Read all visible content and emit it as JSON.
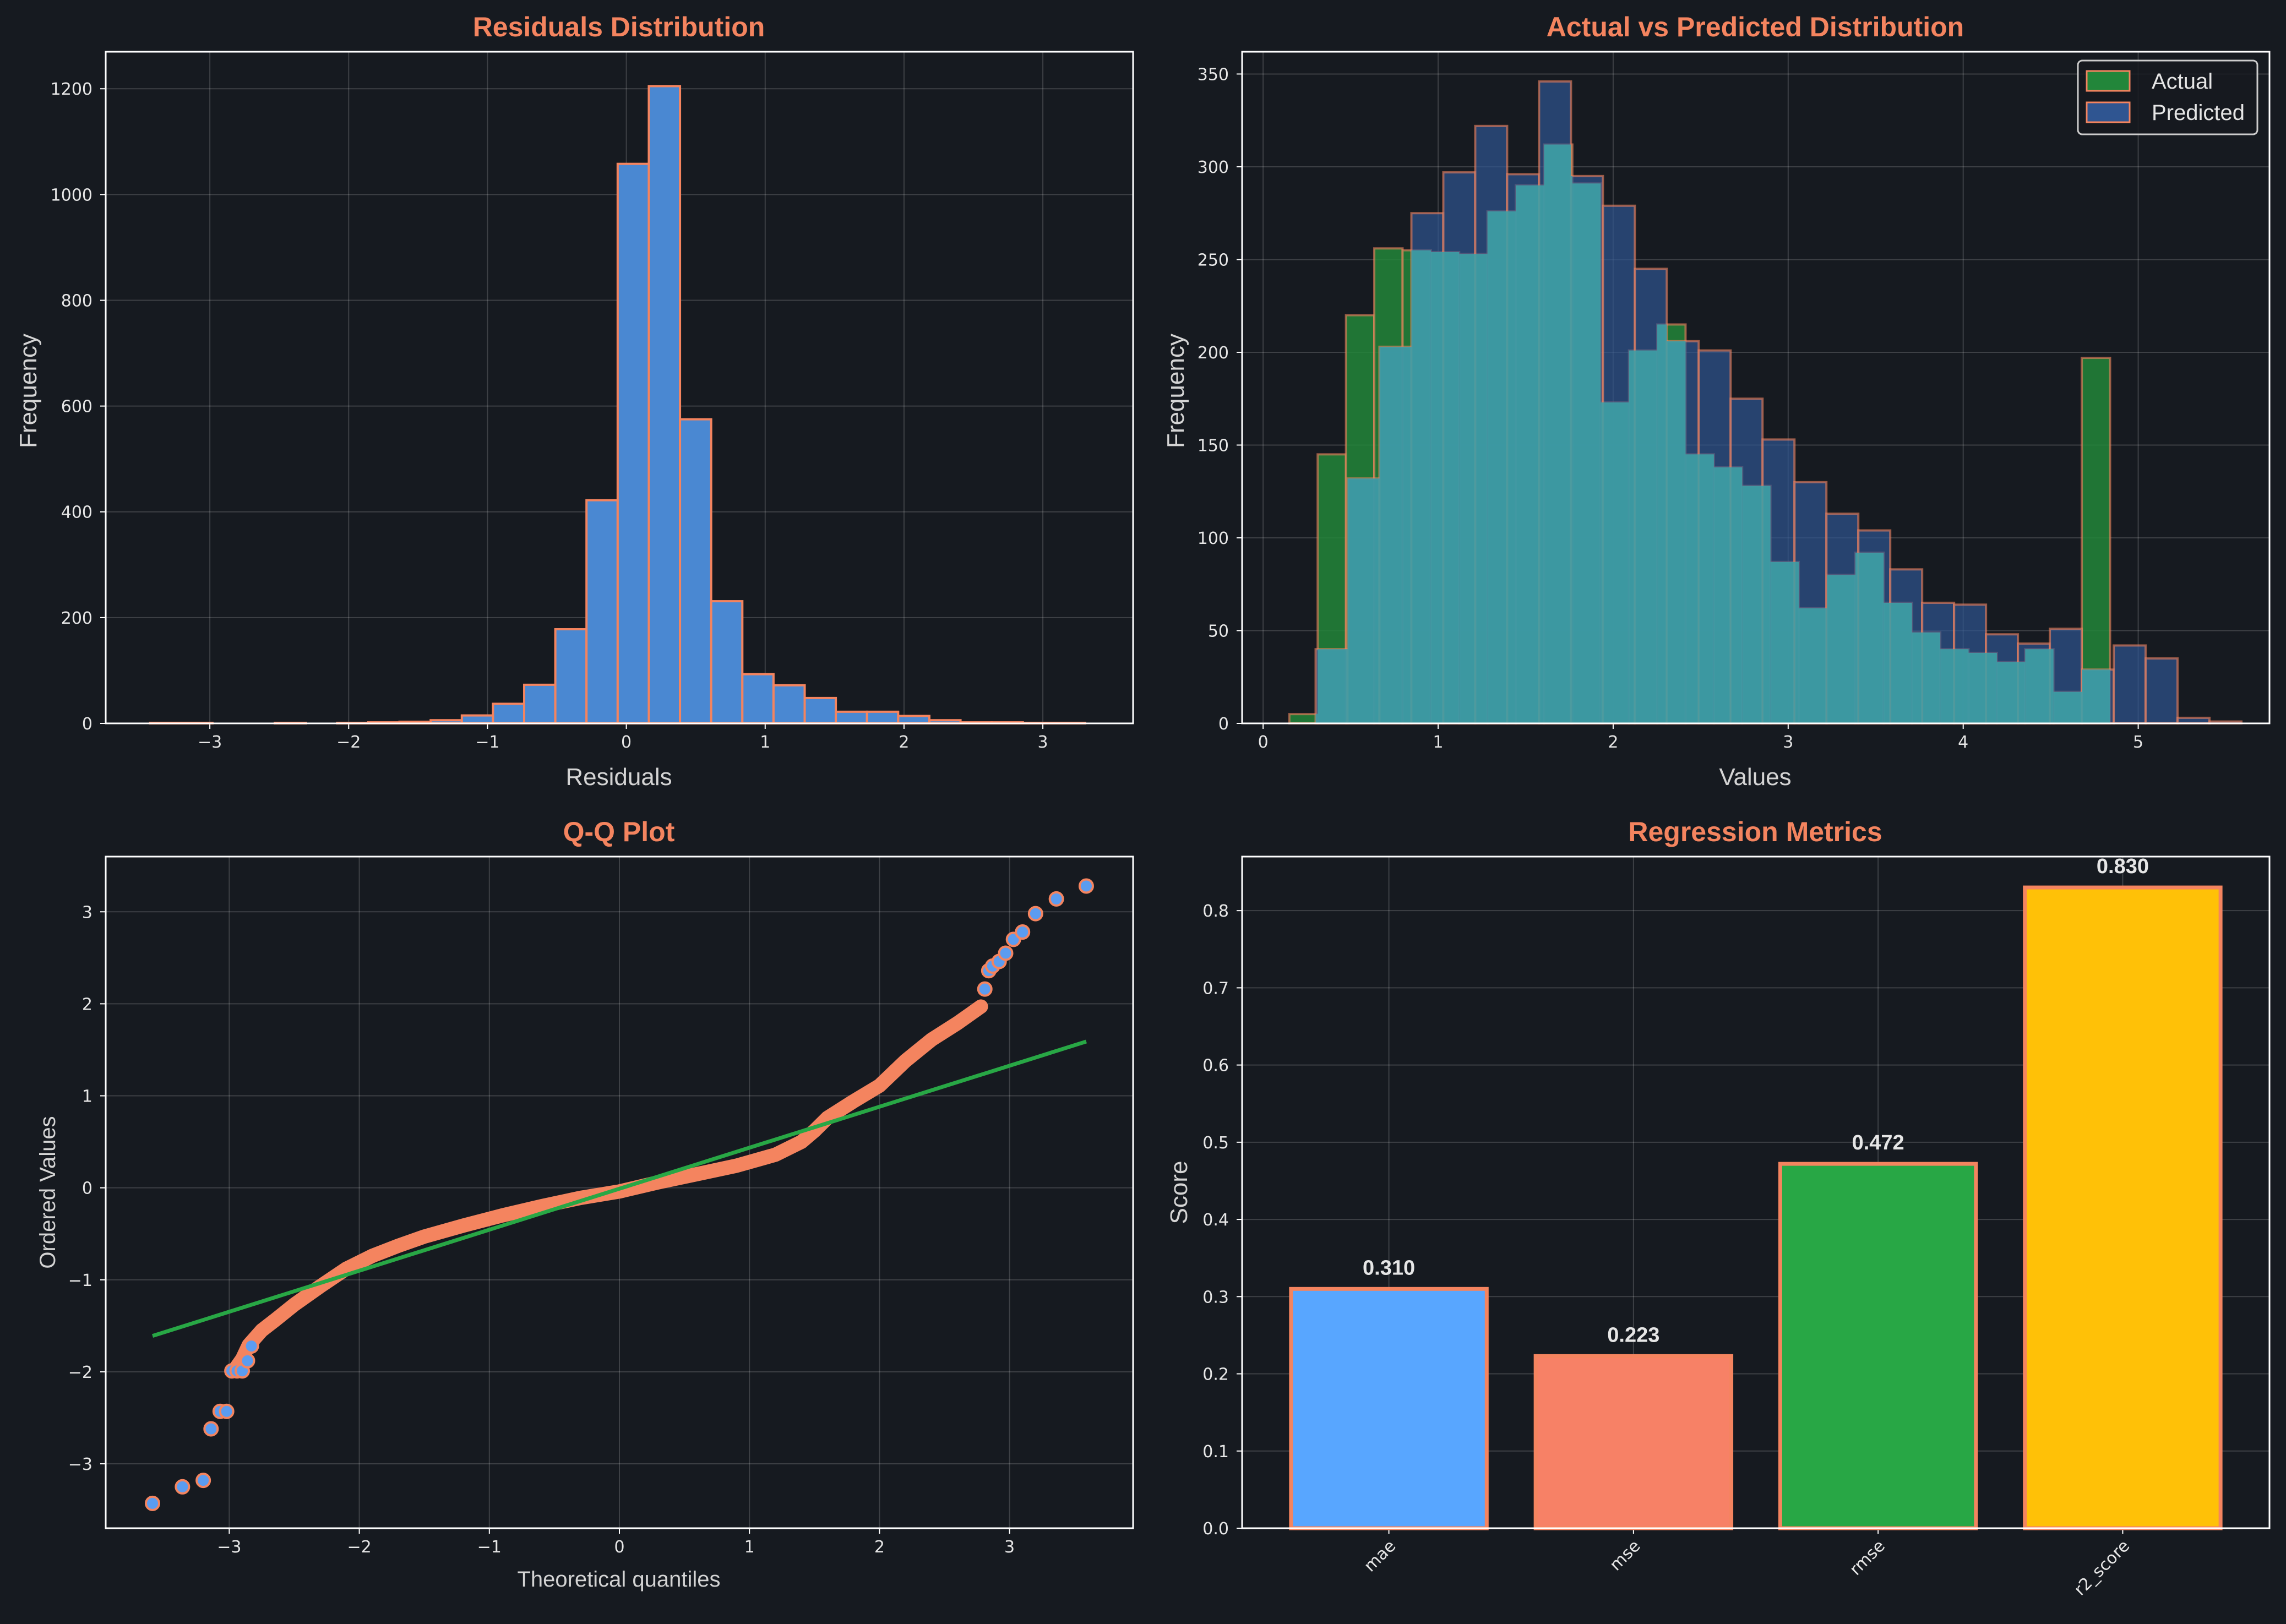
{
  "colors": {
    "background": "#161a20",
    "title": "#f4845f",
    "bar_blue": "#4a88d2",
    "edge": "#f4845f",
    "actual": "#22863a",
    "predicted": "#2f5591",
    "overlap": "#3e9ea6",
    "qq_point": "#5b9cf0",
    "qq_point_edge": "#f4845f",
    "qq_line": "#28a745",
    "metric_colors": [
      "#58a6ff",
      "#f78166",
      "#28a745",
      "#ffc107"
    ]
  },
  "chart_data": [
    {
      "type": "bar",
      "title": "Residuals Distribution",
      "xlabel": "Residuals",
      "ylabel": "Frequency",
      "xlim": [
        -3.75,
        3.65
      ],
      "ylim": [
        0,
        1270
      ],
      "xticks": [
        -3,
        -2,
        -1,
        0,
        1,
        2,
        3
      ],
      "yticks": [
        0,
        200,
        400,
        600,
        800,
        1000,
        1200
      ],
      "grid": true,
      "bin_start": -3.43,
      "bin_width": 0.2245,
      "values": [
        1,
        1,
        0,
        0,
        1,
        0,
        1,
        2,
        3,
        6,
        15,
        37,
        73,
        178,
        422,
        1058,
        1205,
        575,
        231,
        93,
        72,
        48,
        22,
        22,
        14,
        6,
        2,
        2,
        1,
        1
      ]
    },
    {
      "type": "bar",
      "title": "Actual vs Predicted Distribution",
      "xlabel": "Values",
      "ylabel": "Frequency",
      "xlim": [
        -0.12,
        5.75
      ],
      "ylim": [
        0,
        362
      ],
      "xticks": [
        0,
        1,
        2,
        3,
        4,
        5
      ],
      "yticks": [
        0,
        50,
        100,
        150,
        200,
        250,
        300,
        350
      ],
      "grid": true,
      "legend_position": "top-right",
      "series": [
        {
          "name": "Actual",
          "bin_start": 0.15,
          "bin_width": 0.1617,
          "values": [
            5,
            145,
            220,
            256,
            255,
            254,
            253,
            276,
            290,
            312,
            291,
            173,
            201,
            215,
            145,
            138,
            128,
            87,
            62,
            80,
            92,
            65,
            49,
            40,
            38,
            33,
            40,
            17,
            197
          ]
        },
        {
          "name": "Predicted",
          "bin_start": 0.3,
          "bin_width": 0.1824,
          "values": [
            40,
            132,
            203,
            275,
            297,
            322,
            296,
            346,
            295,
            279,
            245,
            206,
            201,
            175,
            153,
            130,
            113,
            104,
            83,
            65,
            64,
            48,
            43,
            51,
            29,
            42,
            35,
            3,
            1
          ]
        }
      ]
    },
    {
      "type": "scatter",
      "title": "Q-Q Plot",
      "xlabel": "Theoretical quantiles",
      "ylabel": "Ordered Values",
      "xlim": [
        -3.95,
        3.95
      ],
      "ylim": [
        -3.7,
        3.6
      ],
      "xticks": [
        -3,
        -2,
        -1,
        0,
        1,
        2,
        3
      ],
      "yticks": [
        -3,
        -2,
        -1,
        0,
        1,
        2,
        3
      ],
      "grid": true,
      "fit_line": {
        "x": [
          -3.59,
          3.59
        ],
        "y": [
          -1.61,
          1.59
        ]
      },
      "dense_curve": {
        "x": [
          -2.95,
          -2.9,
          -2.85,
          -2.75,
          -2.65,
          -2.5,
          -2.3,
          -2.1,
          -1.9,
          -1.7,
          -1.5,
          -1.2,
          -0.9,
          -0.6,
          -0.3,
          0,
          0.3,
          0.6,
          0.9,
          1.2,
          1.4,
          1.5,
          1.6,
          1.8,
          2.0,
          2.2,
          2.4,
          2.6,
          2.7,
          2.78
        ],
        "y": [
          -1.96,
          -1.86,
          -1.71,
          -1.55,
          -1.44,
          -1.27,
          -1.07,
          -0.88,
          -0.74,
          -0.63,
          -0.53,
          -0.41,
          -0.3,
          -0.2,
          -0.11,
          -0.04,
          0.06,
          0.15,
          0.24,
          0.36,
          0.5,
          0.62,
          0.76,
          0.94,
          1.11,
          1.38,
          1.61,
          1.79,
          1.89,
          1.97
        ]
      },
      "points": [
        {
          "x": -3.59,
          "y": -3.43
        },
        {
          "x": -3.36,
          "y": -3.25
        },
        {
          "x": -3.2,
          "y": -3.18
        },
        {
          "x": -3.14,
          "y": -2.62
        },
        {
          "x": -3.07,
          "y": -2.43
        },
        {
          "x": -3.02,
          "y": -2.43
        },
        {
          "x": -2.98,
          "y": -1.99
        },
        {
          "x": -2.94,
          "y": -1.99
        },
        {
          "x": -2.9,
          "y": -1.99
        },
        {
          "x": -2.86,
          "y": -1.88
        },
        {
          "x": -2.83,
          "y": -1.72
        },
        {
          "x": 2.81,
          "y": 2.16
        },
        {
          "x": 2.84,
          "y": 2.36
        },
        {
          "x": 2.87,
          "y": 2.41
        },
        {
          "x": 2.92,
          "y": 2.46
        },
        {
          "x": 2.97,
          "y": 2.55
        },
        {
          "x": 3.03,
          "y": 2.7
        },
        {
          "x": 3.1,
          "y": 2.78
        },
        {
          "x": 3.2,
          "y": 2.98
        },
        {
          "x": 3.36,
          "y": 3.14
        },
        {
          "x": 3.59,
          "y": 3.28
        }
      ]
    },
    {
      "type": "bar",
      "title": "Regression Metrics",
      "xlabel": "",
      "ylabel": "Score",
      "ylim": [
        0,
        0.87
      ],
      "yticks": [
        0.0,
        0.1,
        0.2,
        0.3,
        0.4,
        0.5,
        0.6,
        0.7,
        0.8
      ],
      "ytick_labels": [
        "0.0",
        "0.1",
        "0.2",
        "0.3",
        "0.4",
        "0.5",
        "0.6",
        "0.7",
        "0.8"
      ],
      "grid": true,
      "categories": [
        "mae",
        "mse",
        "rmse",
        "r2_score"
      ],
      "values": [
        0.31,
        0.223,
        0.472,
        0.83
      ],
      "value_labels": [
        "0.310",
        "0.223",
        "0.472",
        "0.830"
      ]
    }
  ]
}
